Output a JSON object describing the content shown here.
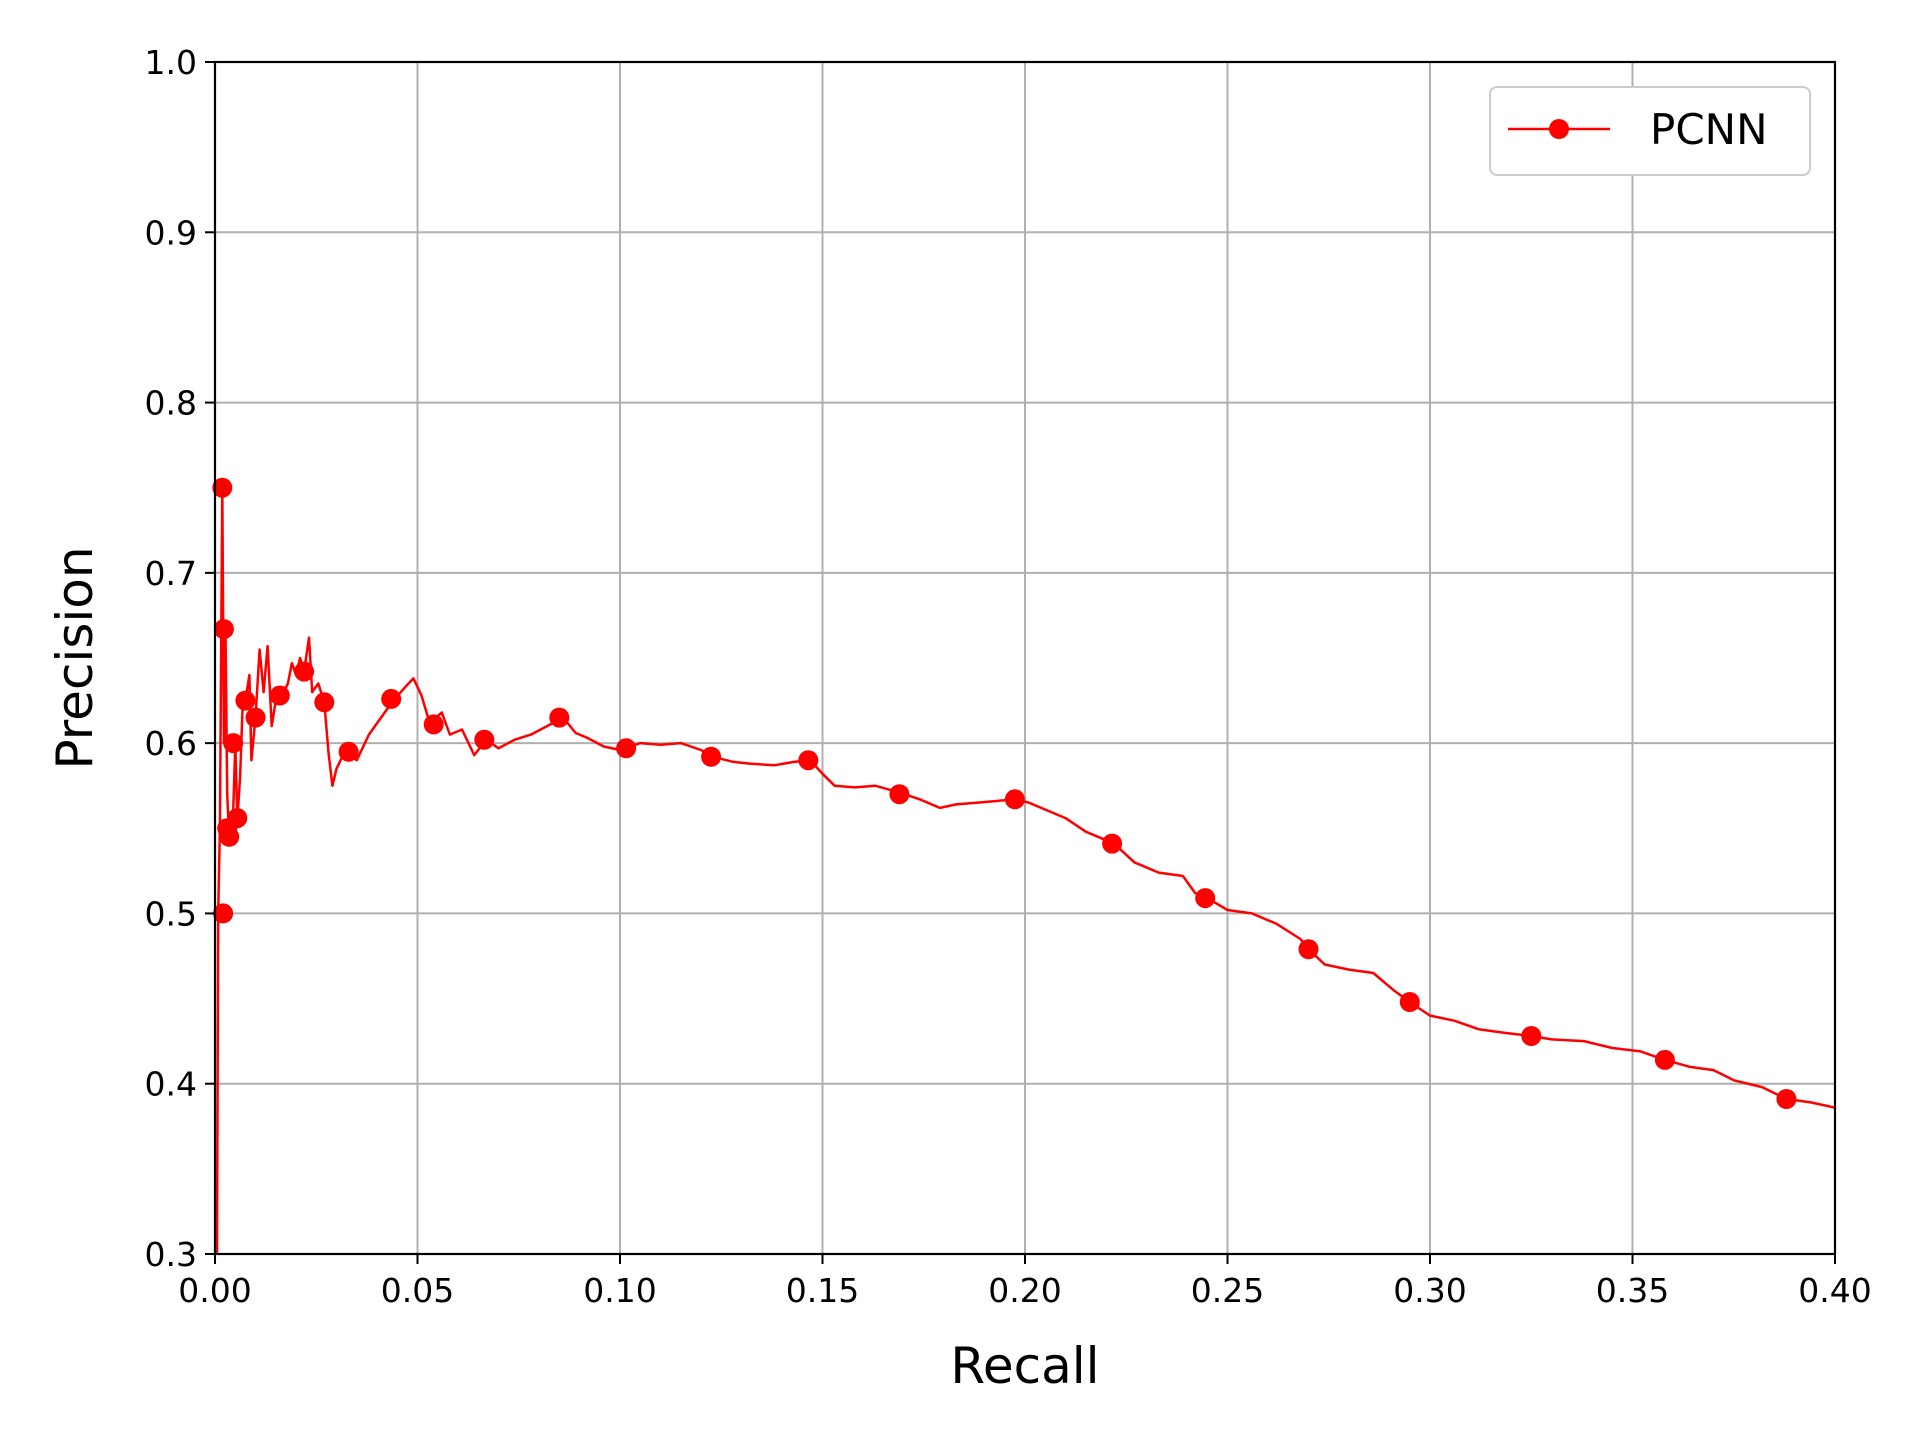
{
  "chart_data": {
    "type": "line",
    "title": "",
    "xlabel": "Recall",
    "ylabel": "Precision",
    "xlim": [
      0.0,
      0.4
    ],
    "ylim": [
      0.3,
      1.0
    ],
    "xticks": [
      "0.00",
      "0.05",
      "0.10",
      "0.15",
      "0.20",
      "0.25",
      "0.30",
      "0.35",
      "0.40"
    ],
    "yticks": [
      "0.3",
      "0.4",
      "0.5",
      "0.6",
      "0.7",
      "0.8",
      "0.9",
      "1.0"
    ],
    "grid": true,
    "legend_position": "top-right",
    "series": [
      {
        "name": "PCNN",
        "color": "#ff0000",
        "marker": "circle",
        "line": [
          [
            0.0005,
            0.3
          ],
          [
            0.0008,
            0.5
          ],
          [
            0.0012,
            0.55
          ],
          [
            0.0018,
            0.75
          ],
          [
            0.0022,
            0.6
          ],
          [
            0.0026,
            0.667
          ],
          [
            0.003,
            0.57
          ],
          [
            0.0035,
            0.545
          ],
          [
            0.0045,
            0.56
          ],
          [
            0.005,
            0.6
          ],
          [
            0.0055,
            0.555
          ],
          [
            0.0062,
            0.58
          ],
          [
            0.0068,
            0.62
          ],
          [
            0.0075,
            0.625
          ],
          [
            0.0085,
            0.64
          ],
          [
            0.009,
            0.59
          ],
          [
            0.01,
            0.615
          ],
          [
            0.011,
            0.655
          ],
          [
            0.012,
            0.63
          ],
          [
            0.013,
            0.657
          ],
          [
            0.014,
            0.61
          ],
          [
            0.015,
            0.625
          ],
          [
            0.0165,
            0.628
          ],
          [
            0.018,
            0.635
          ],
          [
            0.019,
            0.647
          ],
          [
            0.02,
            0.64
          ],
          [
            0.021,
            0.65
          ],
          [
            0.022,
            0.642
          ],
          [
            0.0232,
            0.662
          ],
          [
            0.024,
            0.63
          ],
          [
            0.0255,
            0.635
          ],
          [
            0.027,
            0.624
          ],
          [
            0.028,
            0.595
          ],
          [
            0.029,
            0.575
          ],
          [
            0.03,
            0.585
          ],
          [
            0.032,
            0.595
          ],
          [
            0.035,
            0.59
          ],
          [
            0.038,
            0.605
          ],
          [
            0.041,
            0.615
          ],
          [
            0.044,
            0.625
          ],
          [
            0.047,
            0.633
          ],
          [
            0.049,
            0.638
          ],
          [
            0.051,
            0.628
          ],
          [
            0.053,
            0.612
          ],
          [
            0.056,
            0.618
          ],
          [
            0.058,
            0.605
          ],
          [
            0.061,
            0.608
          ],
          [
            0.064,
            0.593
          ],
          [
            0.067,
            0.602
          ],
          [
            0.07,
            0.597
          ],
          [
            0.074,
            0.602
          ],
          [
            0.078,
            0.605
          ],
          [
            0.082,
            0.61
          ],
          [
            0.086,
            0.615
          ],
          [
            0.089,
            0.606
          ],
          [
            0.092,
            0.603
          ],
          [
            0.096,
            0.598
          ],
          [
            0.1,
            0.596
          ],
          [
            0.105,
            0.6
          ],
          [
            0.11,
            0.599
          ],
          [
            0.115,
            0.6
          ],
          [
            0.12,
            0.596
          ],
          [
            0.123,
            0.592
          ],
          [
            0.128,
            0.589
          ],
          [
            0.132,
            0.588
          ],
          [
            0.138,
            0.587
          ],
          [
            0.143,
            0.589
          ],
          [
            0.147,
            0.59
          ],
          [
            0.15,
            0.582
          ],
          [
            0.153,
            0.575
          ],
          [
            0.158,
            0.574
          ],
          [
            0.163,
            0.575
          ],
          [
            0.169,
            0.571
          ],
          [
            0.174,
            0.567
          ],
          [
            0.179,
            0.562
          ],
          [
            0.183,
            0.564
          ],
          [
            0.188,
            0.565
          ],
          [
            0.193,
            0.566
          ],
          [
            0.1975,
            0.567
          ],
          [
            0.201,
            0.565
          ],
          [
            0.205,
            0.561
          ],
          [
            0.21,
            0.556
          ],
          [
            0.215,
            0.548
          ],
          [
            0.22,
            0.543
          ],
          [
            0.222,
            0.541
          ],
          [
            0.227,
            0.53
          ],
          [
            0.233,
            0.524
          ],
          [
            0.239,
            0.522
          ],
          [
            0.242,
            0.512
          ],
          [
            0.245,
            0.509
          ],
          [
            0.25,
            0.502
          ],
          [
            0.256,
            0.5
          ],
          [
            0.262,
            0.494
          ],
          [
            0.268,
            0.485
          ],
          [
            0.27,
            0.479
          ],
          [
            0.274,
            0.47
          ],
          [
            0.28,
            0.467
          ],
          [
            0.286,
            0.465
          ],
          [
            0.291,
            0.455
          ],
          [
            0.295,
            0.448
          ],
          [
            0.3,
            0.44
          ],
          [
            0.306,
            0.437
          ],
          [
            0.312,
            0.432
          ],
          [
            0.318,
            0.43
          ],
          [
            0.325,
            0.428
          ],
          [
            0.33,
            0.426
          ],
          [
            0.338,
            0.425
          ],
          [
            0.345,
            0.421
          ],
          [
            0.352,
            0.419
          ],
          [
            0.358,
            0.414
          ],
          [
            0.364,
            0.41
          ],
          [
            0.37,
            0.408
          ],
          [
            0.375,
            0.402
          ],
          [
            0.382,
            0.398
          ],
          [
            0.388,
            0.391
          ],
          [
            0.394,
            0.389
          ],
          [
            0.4,
            0.386
          ]
        ],
        "markers": [
          [
            0.0018,
            0.75
          ],
          [
            0.002,
            0.5
          ],
          [
            0.0022,
            0.667
          ],
          [
            0.003,
            0.55
          ],
          [
            0.0035,
            0.545
          ],
          [
            0.0045,
            0.6
          ],
          [
            0.0055,
            0.556
          ],
          [
            0.0075,
            0.625
          ],
          [
            0.01,
            0.615
          ],
          [
            0.016,
            0.628
          ],
          [
            0.022,
            0.642
          ],
          [
            0.027,
            0.624
          ],
          [
            0.033,
            0.595
          ],
          [
            0.0435,
            0.626
          ],
          [
            0.054,
            0.611
          ],
          [
            0.0665,
            0.602
          ],
          [
            0.085,
            0.615
          ],
          [
            0.1015,
            0.597
          ],
          [
            0.1225,
            0.592
          ],
          [
            0.1465,
            0.59
          ],
          [
            0.169,
            0.57
          ],
          [
            0.1975,
            0.567
          ],
          [
            0.2215,
            0.541
          ],
          [
            0.2445,
            0.509
          ],
          [
            0.27,
            0.479
          ],
          [
            0.295,
            0.448
          ],
          [
            0.325,
            0.428
          ],
          [
            0.358,
            0.414
          ],
          [
            0.388,
            0.391
          ]
        ]
      }
    ]
  }
}
